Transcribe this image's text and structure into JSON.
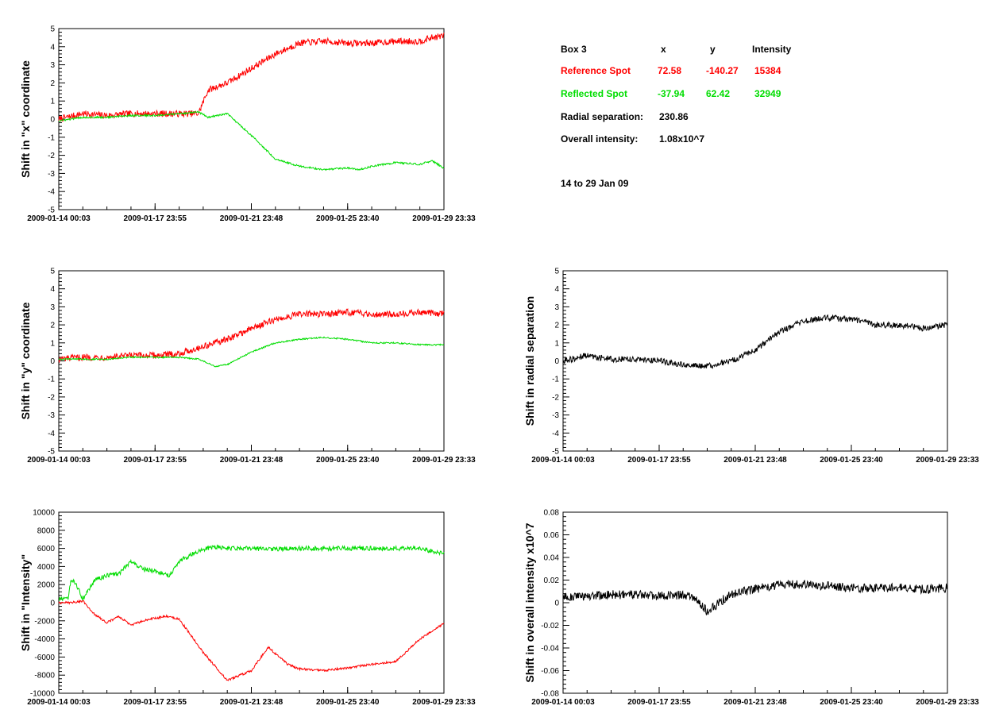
{
  "info_panel": {
    "box_label": "Box 3",
    "col_x": "x",
    "col_y": "y",
    "col_intensity": "Intensity",
    "reference": {
      "label": "Reference Spot",
      "x": "72.58",
      "y": "-140.27",
      "intensity": "15384",
      "color": "#ff0000"
    },
    "reflected": {
      "label": "Reflected Spot",
      "x": "-37.94",
      "y": "62.42",
      "intensity": "32949",
      "color": "#00dd00"
    },
    "radial_label": "Radial separation:",
    "radial_value": "230.86",
    "overall_label": "Overall intensity:",
    "overall_value": "1.08x10^7",
    "date_range": "14 to 29 Jan 09"
  },
  "chart_data": [
    {
      "id": "shift-x",
      "type": "line",
      "ylabel": "Shift in \"x\" coordinate",
      "xlabel": "",
      "xticks": [
        "2009-01-14 00:03",
        "2009-01-17 23:55",
        "2009-01-21 23:48",
        "2009-01-25 23:40",
        "2009-01-29 23:33"
      ],
      "xlim": [
        0,
        16
      ],
      "ylim": [
        -5,
        5
      ],
      "yticks": [
        -5,
        -4,
        -3,
        -2,
        -1,
        0,
        1,
        2,
        3,
        4,
        5
      ],
      "grid": false,
      "series": [
        {
          "color": "#ff0000",
          "noise": 0.18,
          "x": [
            0,
            1,
            2,
            3,
            4,
            5,
            5.8,
            6.2,
            7,
            8,
            9,
            10,
            11,
            12,
            13,
            14,
            15,
            15.5,
            16
          ],
          "y": [
            0,
            0.3,
            0.2,
            0.3,
            0.3,
            0.3,
            0.3,
            1.6,
            2.0,
            2.8,
            3.6,
            4.2,
            4.3,
            4.2,
            4.2,
            4.3,
            4.3,
            4.5,
            4.6
          ]
        },
        {
          "color": "#00dd00",
          "noise": 0.05,
          "x": [
            0,
            1,
            2,
            3,
            4,
            5,
            5.8,
            6.2,
            7,
            8,
            9,
            10,
            11,
            12,
            12.5,
            13,
            14,
            15,
            15.5,
            16
          ],
          "y": [
            -0.1,
            0.1,
            0.1,
            0.2,
            0.2,
            0.3,
            0.4,
            0.1,
            0.3,
            -0.9,
            -2.2,
            -2.6,
            -2.8,
            -2.7,
            -2.8,
            -2.6,
            -2.4,
            -2.5,
            -2.3,
            -2.7
          ]
        }
      ]
    },
    {
      "id": "shift-y",
      "type": "line",
      "ylabel": "Shift in \"y\" coordinate",
      "xlabel": "",
      "xticks": [
        "2009-01-14 00:03",
        "2009-01-17 23:55",
        "2009-01-21 23:48",
        "2009-01-25 23:40",
        "2009-01-29 23:33"
      ],
      "xlim": [
        0,
        16
      ],
      "ylim": [
        -5,
        5
      ],
      "yticks": [
        -5,
        -4,
        -3,
        -2,
        -1,
        0,
        1,
        2,
        3,
        4,
        5
      ],
      "grid": false,
      "series": [
        {
          "color": "#ff0000",
          "noise": 0.18,
          "x": [
            0,
            1,
            2,
            3,
            4,
            5,
            6,
            7,
            8,
            9,
            10,
            11,
            12,
            13,
            14,
            15,
            16
          ],
          "y": [
            0.1,
            0.2,
            0.2,
            0.3,
            0.3,
            0.4,
            0.8,
            1.2,
            1.8,
            2.3,
            2.6,
            2.6,
            2.7,
            2.6,
            2.6,
            2.7,
            2.6
          ]
        },
        {
          "color": "#00dd00",
          "noise": 0.04,
          "x": [
            0,
            1,
            2,
            3,
            4,
            5,
            5.8,
            6.5,
            7,
            8,
            9,
            10,
            11,
            12,
            13,
            14,
            15,
            16
          ],
          "y": [
            0.1,
            0.1,
            0.1,
            0.2,
            0.2,
            0.2,
            0.1,
            -0.3,
            -0.2,
            0.5,
            1.0,
            1.2,
            1.3,
            1.2,
            1.0,
            1.0,
            0.9,
            0.9
          ]
        }
      ]
    },
    {
      "id": "shift-intensity",
      "type": "line",
      "ylabel": "Shift in \"Intensity\"",
      "xlabel": "",
      "xticks": [
        "2009-01-14 00:03",
        "2009-01-17 23:55",
        "2009-01-21 23:48",
        "2009-01-25 23:40",
        "2009-01-29 23:33"
      ],
      "xlim": [
        0,
        16
      ],
      "ylim": [
        -10000,
        10000
      ],
      "yticks": [
        -10000,
        -8000,
        -6000,
        -4000,
        -2000,
        0,
        2000,
        4000,
        6000,
        8000,
        10000
      ],
      "grid": false,
      "series": [
        {
          "color": "#00dd00",
          "noise": 250,
          "x": [
            0,
            0.4,
            0.5,
            0.7,
            1,
            1.5,
            2,
            2.5,
            3,
            3.5,
            4,
            4.3,
            4.6,
            5,
            5.5,
            6,
            6.5,
            7,
            8,
            9,
            10,
            11,
            12,
            13,
            14,
            15,
            16
          ],
          "y": [
            400,
            400,
            2500,
            2200,
            400,
            2500,
            3000,
            3200,
            4600,
            3700,
            3500,
            3300,
            3000,
            4600,
            5300,
            5900,
            6200,
            6000,
            6000,
            5900,
            6000,
            6000,
            6000,
            6000,
            6000,
            6000,
            5400
          ]
        },
        {
          "color": "#ff0000",
          "noise": 120,
          "x": [
            0,
            0.5,
            1,
            1.5,
            2,
            2.5,
            3,
            3.5,
            4,
            4.5,
            5,
            6,
            7,
            8,
            8.7,
            9.5,
            10,
            11,
            12,
            13,
            14,
            15,
            16
          ],
          "y": [
            0,
            0,
            200,
            -1300,
            -2200,
            -1500,
            -2500,
            -2000,
            -1700,
            -1500,
            -1800,
            -5500,
            -8600,
            -7500,
            -4900,
            -6800,
            -7300,
            -7500,
            -7200,
            -6800,
            -6500,
            -4000,
            -2300
          ]
        }
      ]
    },
    {
      "id": "shift-radial",
      "type": "line",
      "ylabel": "Shift in radial separation",
      "xlabel": "",
      "xticks": [
        "2009-01-14 00:03",
        "2009-01-17 23:55",
        "2009-01-21 23:48",
        "2009-01-25 23:40",
        "2009-01-29 23:33"
      ],
      "xlim": [
        0,
        16
      ],
      "ylim": [
        -5,
        5
      ],
      "yticks": [
        -5,
        -4,
        -3,
        -2,
        -1,
        0,
        1,
        2,
        3,
        4,
        5
      ],
      "grid": false,
      "series": [
        {
          "color": "#000000",
          "noise": 0.17,
          "x": [
            0,
            1,
            2,
            3,
            4,
            5,
            6,
            7,
            8,
            9,
            10,
            11,
            12,
            13,
            14,
            15,
            16
          ],
          "y": [
            0,
            0.3,
            0.1,
            0.1,
            0.0,
            -0.2,
            -0.3,
            0.0,
            0.6,
            1.6,
            2.2,
            2.4,
            2.3,
            2.0,
            2.0,
            1.8,
            2.0
          ]
        }
      ]
    },
    {
      "id": "shift-overall-intensity",
      "type": "line",
      "ylabel": "Shift in overall intensity x10^7",
      "xlabel": "",
      "xticks": [
        "2009-01-14 00:03",
        "2009-01-17 23:55",
        "2009-01-21 23:48",
        "2009-01-25 23:40",
        "2009-01-29 23:33"
      ],
      "xlim": [
        0,
        16
      ],
      "ylim": [
        -0.08,
        0.08
      ],
      "yticks": [
        -0.08,
        -0.06,
        -0.04,
        -0.02,
        0,
        0.02,
        0.04,
        0.06,
        0.08
      ],
      "grid": false,
      "series": [
        {
          "color": "#000000",
          "noise": 0.004,
          "x": [
            0,
            1,
            2,
            3,
            4,
            5,
            5.5,
            6,
            7,
            8,
            9,
            10,
            11,
            12,
            13,
            14,
            15,
            16
          ],
          "y": [
            0.005,
            0.006,
            0.007,
            0.007,
            0.006,
            0.007,
            0.005,
            -0.008,
            0.008,
            0.012,
            0.016,
            0.016,
            0.015,
            0.013,
            0.013,
            0.013,
            0.012,
            0.013
          ]
        }
      ]
    }
  ]
}
